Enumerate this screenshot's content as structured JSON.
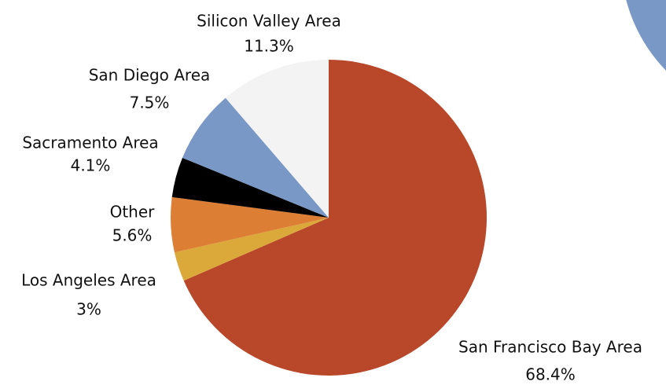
{
  "chart_data": {
    "type": "pie",
    "categories": [
      "San Francisco Bay Area",
      "Los Angeles Area",
      "Other",
      "Sacramento Area",
      "San Diego Area",
      "Silicon Valley Area"
    ],
    "values": [
      68.4,
      3,
      5.6,
      4.1,
      7.5,
      11.3
    ],
    "value_labels": [
      "68.4%",
      "3%",
      "5.6%",
      "4.1%",
      "7.5%",
      "11.3%"
    ],
    "colors": [
      "#b9472a",
      "#dba83a",
      "#dd7e35",
      "#000000",
      "#7a98c6",
      "#f3f3f3"
    ]
  }
}
